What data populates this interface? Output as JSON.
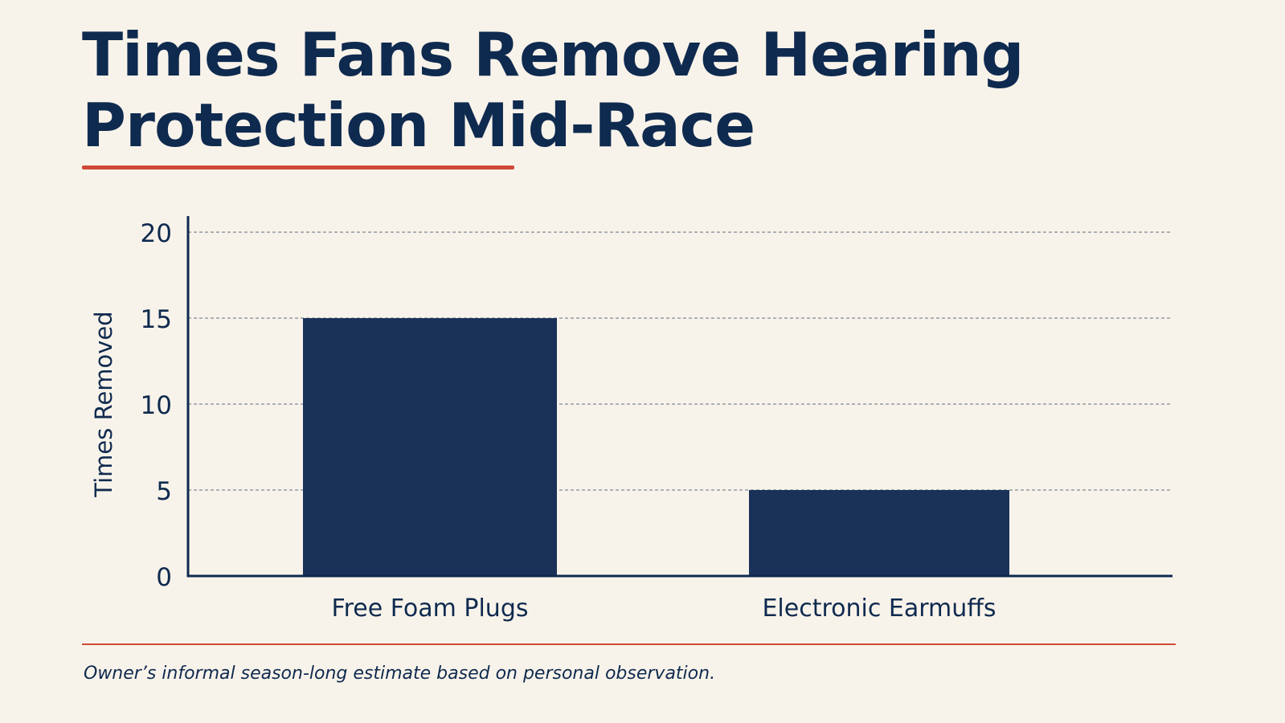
{
  "chart_data": {
    "type": "bar",
    "title": "Times Fans Remove Hearing Protection Mid-Race",
    "ylabel": "Times Removed",
    "xlabel": "",
    "categories": [
      "Free Foam Plugs",
      "Electronic Earmuffs"
    ],
    "values": [
      15,
      5
    ],
    "ylim": [
      0,
      20
    ],
    "yticks": [
      0,
      5,
      10,
      15,
      20
    ],
    "grid": true,
    "legend": "none",
    "footnote": "Owner’s informal season-long estimate based on personal observation."
  },
  "colors": {
    "bar": "#1a3158",
    "axis": "#0f2a4f",
    "accent": "#cf4a36",
    "grid": "#7f8796",
    "background": "#f8f3ea"
  }
}
